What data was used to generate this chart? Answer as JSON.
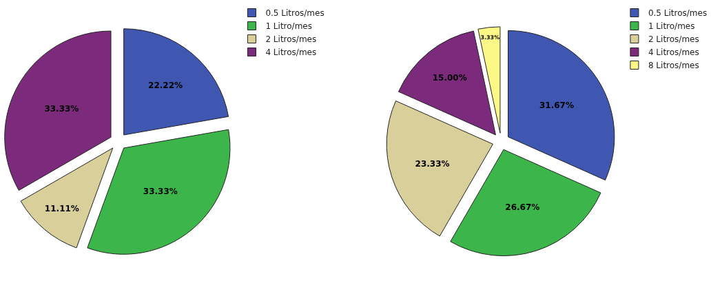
{
  "chart_data": [
    {
      "type": "pie",
      "categories": [
        "0.5 Litros/mes",
        "1 Litro/mes",
        "2 Litros/mes",
        "4 Litros/mes"
      ],
      "values": [
        22.22,
        33.33,
        11.11,
        33.33
      ],
      "colors": [
        "#3f57b0",
        "#3cb54a",
        "#d8cf9a",
        "#7b2a7c"
      ],
      "value_labels": [
        "22.22%",
        "33.33%",
        "11.11%",
        "33.33%"
      ],
      "legend": "top right"
    },
    {
      "type": "pie",
      "categories": [
        "0.5 Litros/mes",
        "1 Litro/mes",
        "2 Litros/mes",
        "4 Litros/mes",
        "8 Litros/mes"
      ],
      "values": [
        31.67,
        26.67,
        23.33,
        15.0,
        3.33
      ],
      "colors": [
        "#3f57b0",
        "#3cb54a",
        "#d8cf9a",
        "#7b2a7c",
        "#fbf888"
      ],
      "value_labels": [
        "31.67%",
        "26.67%",
        "23.33%",
        "15.00%",
        "3.33%"
      ],
      "legend": "top right"
    }
  ]
}
